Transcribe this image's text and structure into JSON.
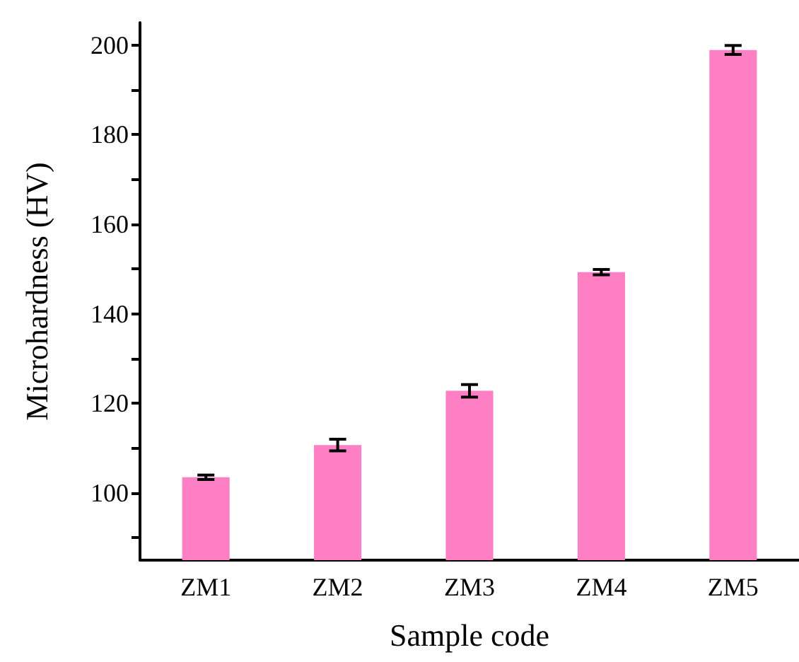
{
  "chart_data": {
    "type": "bar",
    "xlabel": "Sample code",
    "ylabel": "Microhardness (HV)",
    "categories": [
      "ZM1",
      "ZM2",
      "ZM3",
      "ZM4",
      "ZM5"
    ],
    "values": [
      103.5,
      110.7,
      122.8,
      149.3,
      198.9
    ],
    "errors": [
      0.5,
      1.3,
      1.4,
      0.6,
      1.0
    ],
    "color": "#ff7fc4",
    "ylim": [
      85,
      205
    ],
    "yticks": [
      {
        "value": 90,
        "label": null
      },
      100,
      {
        "value": 110,
        "label": null
      },
      120,
      {
        "value": 130,
        "label": null
      },
      140,
      {
        "value": 150,
        "label": null
      },
      160,
      {
        "value": 170,
        "label": null
      },
      180,
      {
        "value": 190,
        "label": null
      },
      200
    ],
    "grid": false
  }
}
